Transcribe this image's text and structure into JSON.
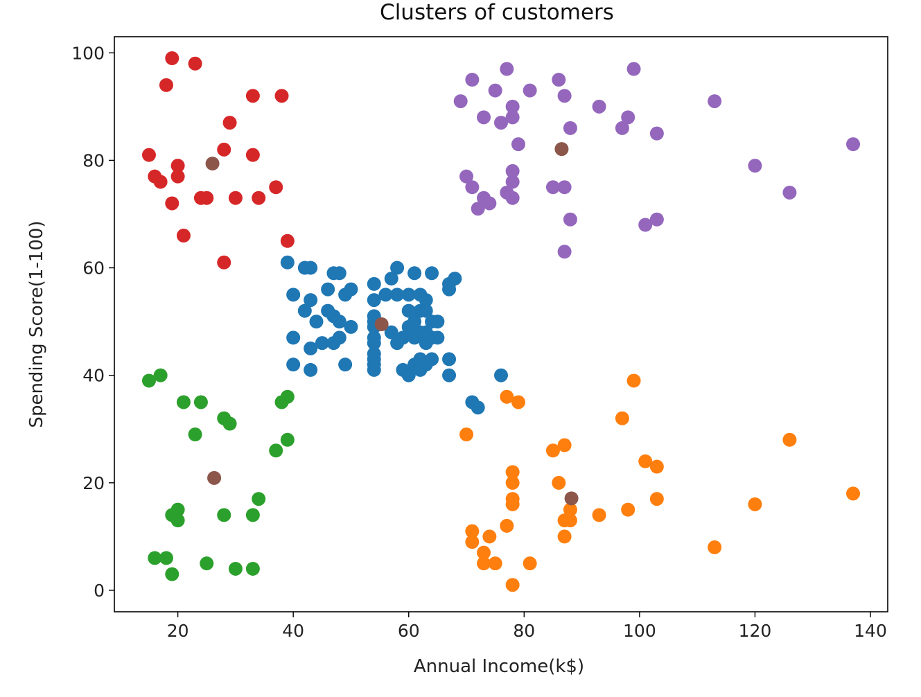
{
  "chart_data": {
    "type": "scatter",
    "title": "Clusters of customers",
    "xlabel": "Annual Income(k$)",
    "ylabel": "Spending Score(1-100)",
    "xlim": [
      9,
      143
    ],
    "ylim": [
      -4,
      103
    ],
    "xticks": [
      20,
      40,
      60,
      80,
      100,
      120,
      140
    ],
    "yticks": [
      0,
      20,
      40,
      60,
      80,
      100
    ],
    "grid": false,
    "legend": "none",
    "series": [
      {
        "color": "#d62728",
        "points": [
          [
            19,
            99
          ],
          [
            23,
            98
          ],
          [
            18,
            94
          ],
          [
            33,
            92
          ],
          [
            38,
            92
          ],
          [
            29,
            87
          ],
          [
            15,
            81
          ],
          [
            20,
            79
          ],
          [
            28,
            82
          ],
          [
            33,
            81
          ],
          [
            16,
            77
          ],
          [
            17,
            76
          ],
          [
            20,
            77
          ],
          [
            37,
            75
          ],
          [
            19,
            72
          ],
          [
            24,
            73
          ],
          [
            25,
            73
          ],
          [
            30,
            73
          ],
          [
            34,
            73
          ],
          [
            21,
            66
          ],
          [
            39,
            65
          ],
          [
            28,
            61
          ]
        ]
      },
      {
        "color": "#9467bd",
        "points": [
          [
            77,
            97
          ],
          [
            99,
            97
          ],
          [
            71,
            95
          ],
          [
            86,
            95
          ],
          [
            75,
            93
          ],
          [
            81,
            93
          ],
          [
            69,
            91
          ],
          [
            87,
            92
          ],
          [
            113,
            91
          ],
          [
            78,
            90
          ],
          [
            93,
            90
          ],
          [
            73,
            88
          ],
          [
            78,
            88
          ],
          [
            98,
            88
          ],
          [
            76,
            87
          ],
          [
            97,
            86
          ],
          [
            88,
            86
          ],
          [
            103,
            85
          ],
          [
            79,
            83
          ],
          [
            137,
            83
          ],
          [
            120,
            79
          ],
          [
            78,
            78
          ],
          [
            70,
            77
          ],
          [
            71,
            75
          ],
          [
            78,
            76
          ],
          [
            85,
            75
          ],
          [
            87,
            75
          ],
          [
            126,
            74
          ],
          [
            77,
            74
          ],
          [
            78,
            73
          ],
          [
            73,
            73
          ],
          [
            72,
            71
          ],
          [
            74,
            72
          ],
          [
            88,
            69
          ],
          [
            103,
            69
          ],
          [
            101,
            68
          ],
          [
            87,
            63
          ]
        ]
      },
      {
        "color": "#1f77b4",
        "points": [
          [
            39,
            61
          ],
          [
            42,
            60
          ],
          [
            43,
            60
          ],
          [
            58,
            60
          ],
          [
            48,
            59
          ],
          [
            47,
            59
          ],
          [
            61,
            59
          ],
          [
            64,
            59
          ],
          [
            54,
            57
          ],
          [
            57,
            58
          ],
          [
            68,
            58
          ],
          [
            46,
            56
          ],
          [
            50,
            56
          ],
          [
            56,
            55
          ],
          [
            58,
            55
          ],
          [
            62,
            55
          ],
          [
            67,
            56
          ],
          [
            40,
            55
          ],
          [
            49,
            55
          ],
          [
            60,
            55
          ],
          [
            67,
            57
          ],
          [
            43,
            54
          ],
          [
            54,
            54
          ],
          [
            63,
            54
          ],
          [
            46,
            52
          ],
          [
            42,
            52
          ],
          [
            47,
            51
          ],
          [
            54,
            51
          ],
          [
            60,
            52
          ],
          [
            62,
            52
          ],
          [
            63,
            52
          ],
          [
            64,
            50
          ],
          [
            44,
            50
          ],
          [
            48,
            50
          ],
          [
            54,
            50
          ],
          [
            60,
            49
          ],
          [
            61,
            50
          ],
          [
            63,
            48
          ],
          [
            65,
            50
          ],
          [
            50,
            49
          ],
          [
            54,
            49
          ],
          [
            57,
            48
          ],
          [
            62,
            48
          ],
          [
            48,
            47
          ],
          [
            40,
            47
          ],
          [
            54,
            47
          ],
          [
            59,
            47
          ],
          [
            63,
            46
          ],
          [
            64,
            47
          ],
          [
            65,
            47
          ],
          [
            45,
            46
          ],
          [
            47,
            46
          ],
          [
            54,
            46
          ],
          [
            58,
            46
          ],
          [
            61,
            47
          ],
          [
            43,
            45
          ],
          [
            54,
            44
          ],
          [
            62,
            43
          ],
          [
            64,
            43
          ],
          [
            67,
            43
          ],
          [
            54,
            43
          ],
          [
            63,
            42
          ],
          [
            40,
            42
          ],
          [
            49,
            42
          ],
          [
            54,
            42
          ],
          [
            61,
            42
          ],
          [
            62,
            41
          ],
          [
            54,
            41
          ],
          [
            43,
            41
          ],
          [
            59,
            41
          ],
          [
            60,
            40
          ],
          [
            67,
            40
          ],
          [
            76,
            40
          ],
          [
            71,
            35
          ],
          [
            72,
            34
          ]
        ]
      },
      {
        "color": "#2ca02c",
        "points": [
          [
            15,
            39
          ],
          [
            17,
            40
          ],
          [
            21,
            35
          ],
          [
            24,
            35
          ],
          [
            39,
            36
          ],
          [
            38,
            35
          ],
          [
            28,
            32
          ],
          [
            29,
            31
          ],
          [
            23,
            29
          ],
          [
            39,
            28
          ],
          [
            37,
            26
          ],
          [
            34,
            17
          ],
          [
            20,
            15
          ],
          [
            19,
            14
          ],
          [
            20,
            13
          ],
          [
            28,
            14
          ],
          [
            33,
            14
          ],
          [
            16,
            6
          ],
          [
            18,
            6
          ],
          [
            25,
            5
          ],
          [
            30,
            4
          ],
          [
            33,
            4
          ],
          [
            19,
            3
          ]
        ]
      },
      {
        "color": "#ff7f0e",
        "points": [
          [
            99,
            39
          ],
          [
            77,
            36
          ],
          [
            79,
            35
          ],
          [
            97,
            32
          ],
          [
            70,
            29
          ],
          [
            126,
            28
          ],
          [
            87,
            27
          ],
          [
            85,
            26
          ],
          [
            101,
            24
          ],
          [
            103,
            23
          ],
          [
            78,
            22
          ],
          [
            78,
            20
          ],
          [
            86,
            20
          ],
          [
            137,
            18
          ],
          [
            78,
            17
          ],
          [
            78,
            16
          ],
          [
            103,
            17
          ],
          [
            120,
            16
          ],
          [
            88,
            15
          ],
          [
            98,
            15
          ],
          [
            88,
            13
          ],
          [
            87,
            13
          ],
          [
            93,
            14
          ],
          [
            71,
            11
          ],
          [
            71,
            9
          ],
          [
            77,
            12
          ],
          [
            74,
            10
          ],
          [
            87,
            10
          ],
          [
            73,
            7
          ],
          [
            73,
            5
          ],
          [
            75,
            5
          ],
          [
            81,
            5
          ],
          [
            113,
            8
          ],
          [
            78,
            1
          ]
        ]
      },
      {
        "color": "#8c564b",
        "points": [
          [
            26,
            79.4
          ],
          [
            86.5,
            82.1
          ],
          [
            55.3,
            49.5
          ],
          [
            26.3,
            20.9
          ],
          [
            88.2,
            17.1
          ]
        ]
      }
    ]
  }
}
